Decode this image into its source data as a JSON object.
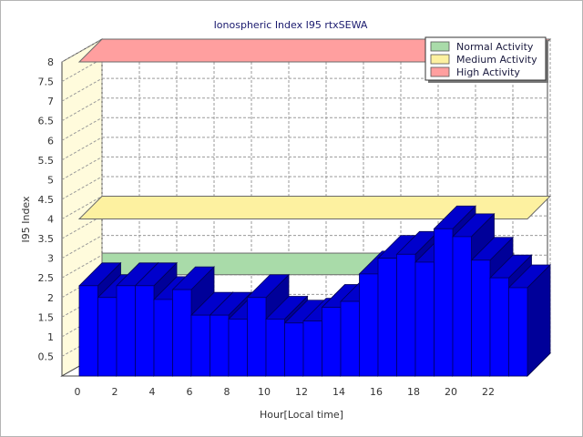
{
  "chart_data": {
    "type": "bar",
    "title": "Ionospheric Index I95 rtxSEWA",
    "xlabel": "Hour[Local time]",
    "ylabel": "I95 Index",
    "x_tick_labels": [
      "0",
      "2",
      "4",
      "6",
      "8",
      "10",
      "12",
      "14",
      "16",
      "18",
      "20",
      "22"
    ],
    "y_tick_labels": [
      "0.5",
      "1",
      "1.5",
      "2",
      "2.5",
      "3",
      "3.5",
      "4",
      "4.5",
      "5",
      "5.5",
      "6",
      "6.5",
      "7",
      "7.5",
      "8"
    ],
    "ylim": [
      0,
      8
    ],
    "grid": true,
    "legend_position": "top-right",
    "categories": [
      "0",
      "1",
      "2",
      "3",
      "4",
      "5",
      "6",
      "7",
      "8",
      "9",
      "10",
      "11",
      "12",
      "13",
      "14",
      "15",
      "16",
      "17",
      "18",
      "19",
      "20",
      "21",
      "22",
      "23"
    ],
    "values": [
      2.3,
      2.0,
      2.3,
      2.3,
      1.95,
      2.2,
      1.55,
      1.55,
      1.45,
      2.0,
      1.45,
      1.35,
      1.4,
      1.75,
      1.9,
      2.6,
      3.0,
      3.1,
      2.9,
      3.75,
      3.55,
      2.95,
      2.5,
      2.25
    ],
    "bar_color": "#0000ff",
    "bands": [
      {
        "name": "Normal Activity",
        "from": 2.0,
        "to": 2.55,
        "color": "#a9dba9"
      },
      {
        "name": "Medium Activity",
        "value": 4.0,
        "color": "#fdf1a0"
      },
      {
        "name": "High Activity",
        "value": 8.0,
        "color": "#ff9f9f"
      }
    ]
  }
}
